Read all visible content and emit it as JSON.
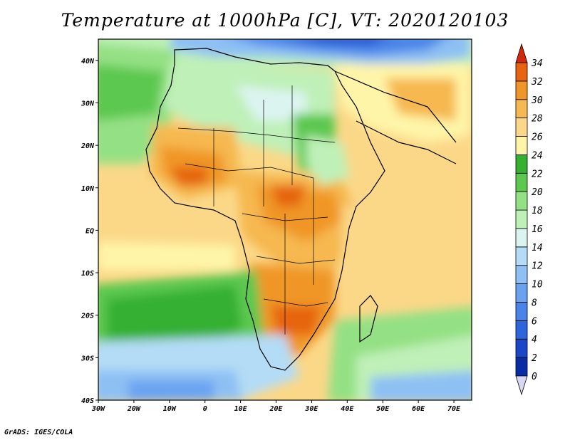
{
  "title": "Temperature at 1000hPa [C], VT: 2020120103",
  "credit": "GrADS: IGES/COLA",
  "map": {
    "lon_range": [
      -30,
      75
    ],
    "lat_range": [
      -40,
      45
    ],
    "lon_ticks": [
      {
        "value": -30,
        "label": "30W"
      },
      {
        "value": -20,
        "label": "20W"
      },
      {
        "value": -10,
        "label": "10W"
      },
      {
        "value": 0,
        "label": "0"
      },
      {
        "value": 10,
        "label": "10E"
      },
      {
        "value": 20,
        "label": "20E"
      },
      {
        "value": 30,
        "label": "30E"
      },
      {
        "value": 40,
        "label": "40E"
      },
      {
        "value": 50,
        "label": "50E"
      },
      {
        "value": 60,
        "label": "60E"
      },
      {
        "value": 70,
        "label": "70E"
      }
    ],
    "lat_ticks": [
      {
        "value": 40,
        "label": "40N"
      },
      {
        "value": 30,
        "label": "30N"
      },
      {
        "value": 20,
        "label": "20N"
      },
      {
        "value": 10,
        "label": "10N"
      },
      {
        "value": 0,
        "label": "EQ"
      },
      {
        "value": -10,
        "label": "10S"
      },
      {
        "value": -20,
        "label": "20S"
      },
      {
        "value": -30,
        "label": "30S"
      },
      {
        "value": -40,
        "label": "40S"
      }
    ]
  },
  "colorbar": {
    "levels": [
      "0",
      "2",
      "4",
      "6",
      "8",
      "10",
      "12",
      "14",
      "16",
      "18",
      "20",
      "22",
      "24",
      "26",
      "28",
      "30",
      "32",
      "34"
    ],
    "colors": [
      "#1c1a8c",
      "#0a2ba6",
      "#1a47c8",
      "#2d66dc",
      "#4a84e8",
      "#6aa2f0",
      "#8ec0f4",
      "#b4dcf6",
      "#dbf4f0",
      "#bff0b8",
      "#94e084",
      "#5cc850",
      "#36b030",
      "#fff5a8",
      "#fbd888",
      "#f6b850",
      "#f09628",
      "#e6650e",
      "#d4280a"
    ],
    "under_color": "#d8d8f4",
    "over_color": "#d4280a"
  }
}
